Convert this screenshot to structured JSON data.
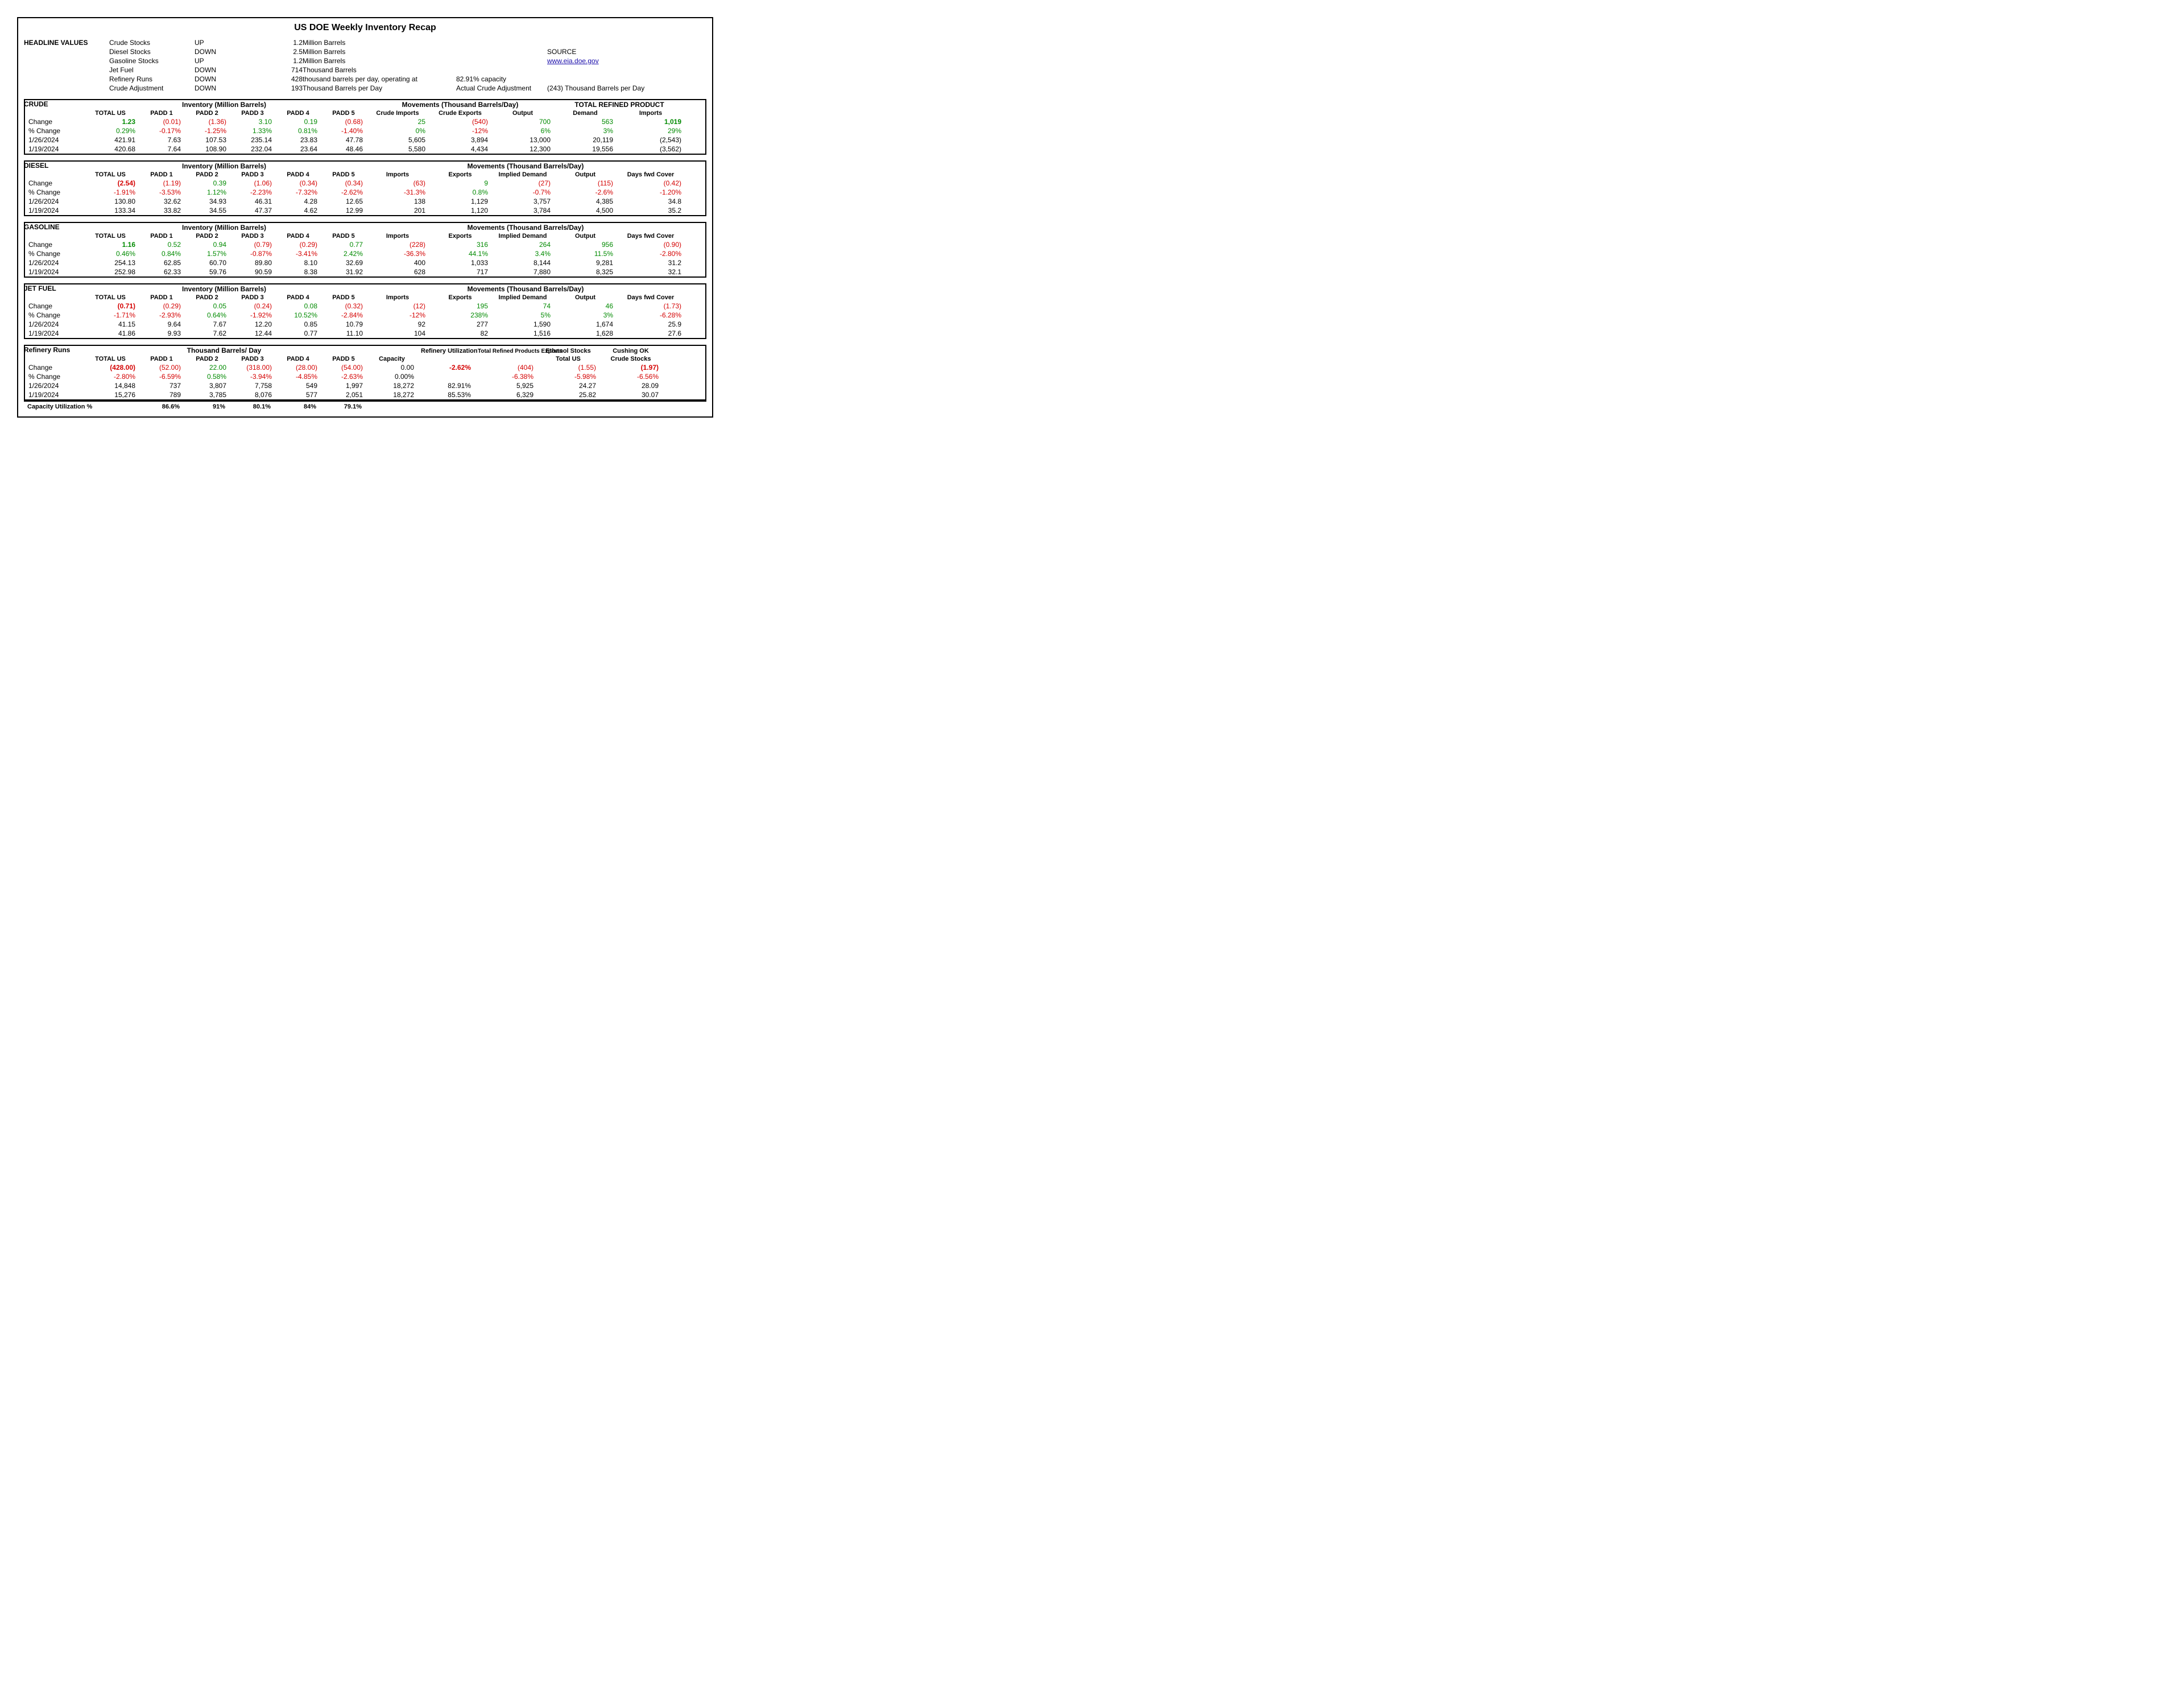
{
  "title": "US DOE Weekly Inventory Recap",
  "headlineLabel": "HEADLINE VALUES",
  "dates": {
    "cur": "1/26/2024",
    "prev": "1/19/2024"
  },
  "rowLabels": {
    "change": "Change",
    "pct": "% Change"
  },
  "headline": [
    {
      "name": "Crude Stocks",
      "dir": "UP",
      "val": "1.2",
      "unit": "Million Barrels"
    },
    {
      "name": "Diesel Stocks",
      "dir": "DOWN",
      "val": "2.5",
      "unit": "Million Barrels"
    },
    {
      "name": "Gasoline Stocks",
      "dir": "UP",
      "val": "1.2",
      "unit": "Million Barrels"
    },
    {
      "name": "Jet Fuel",
      "dir": "DOWN",
      "val": "714",
      "unit": "Thousand Barrels"
    },
    {
      "name": "Refinery Runs",
      "dir": "DOWN",
      "val": "428",
      "unit": "thousand barrels per day, operating at"
    },
    {
      "name": "Crude Adjustment",
      "dir": "DOWN",
      "val": "193",
      "unit": "Thousand Barrels per Day"
    }
  ],
  "refCapacity": "82.91% capacity",
  "sourceLabel": "SOURCE",
  "sourceLink": "www.eia.doe.gov",
  "actualAdjLbl": "Actual Crude Adjustment",
  "actualAdjVal": "(243)",
  "actualAdjUnit": "Thousand Barrels per Day",
  "invHdr": "Inventory (Million Barrels)",
  "movHdr": "Movements (Thousand Barrels/Day)",
  "paddHdrs": [
    "TOTAL US",
    "PADD 1",
    "PADD 2",
    "PADD 3",
    "PADD 4",
    "PADD 5"
  ],
  "crude": {
    "name": "CRUDE",
    "movCols": [
      "Crude Imports",
      "Crude Exports",
      "Output"
    ],
    "refHdr": "TOTAL REFINED PRODUCT",
    "refCols": [
      "Demand",
      "Imports"
    ],
    "change": [
      {
        "v": "1.23",
        "c": "pos",
        "b": 1
      },
      {
        "v": "(0.01)",
        "c": "neg"
      },
      {
        "v": "(1.36)",
        "c": "neg"
      },
      {
        "v": "3.10",
        "c": "pos"
      },
      {
        "v": "0.19",
        "c": "pos"
      },
      {
        "v": "(0.68)",
        "c": "neg"
      },
      {
        "v": "25",
        "c": "pos"
      },
      {
        "v": "(540)",
        "c": "neg"
      },
      {
        "v": "700",
        "c": "pos"
      },
      {
        "v": "563",
        "c": "pos"
      },
      {
        "v": "1,019",
        "c": "pos",
        "b": 1
      }
    ],
    "pct": [
      {
        "v": "0.29%",
        "c": "pos"
      },
      {
        "v": "-0.17%",
        "c": "neg"
      },
      {
        "v": "-1.25%",
        "c": "neg"
      },
      {
        "v": "1.33%",
        "c": "pos"
      },
      {
        "v": "0.81%",
        "c": "pos"
      },
      {
        "v": "-1.40%",
        "c": "neg"
      },
      {
        "v": "0%",
        "c": "pos"
      },
      {
        "v": "-12%",
        "c": "neg"
      },
      {
        "v": "6%",
        "c": "pos"
      },
      {
        "v": "3%",
        "c": "pos"
      },
      {
        "v": "29%",
        "c": "pos"
      }
    ],
    "cur": [
      "421.91",
      "7.63",
      "107.53",
      "235.14",
      "23.83",
      "47.78",
      "5,605",
      "3,894",
      "13,000",
      "20,119",
      "(2,543)"
    ],
    "prev": [
      "420.68",
      "7.64",
      "108.90",
      "232.04",
      "23.64",
      "48.46",
      "5,580",
      "4,434",
      "12,300",
      "19,556",
      "(3,562)"
    ]
  },
  "diesel": {
    "name": "DIESEL",
    "movCols": [
      "Imports",
      "Exports",
      "Implied Demand",
      "Output",
      "Days fwd Cover"
    ],
    "change": [
      {
        "v": "(2.54)",
        "c": "neg",
        "b": 1
      },
      {
        "v": "(1.19)",
        "c": "neg"
      },
      {
        "v": "0.39",
        "c": "pos"
      },
      {
        "v": "(1.06)",
        "c": "neg"
      },
      {
        "v": "(0.34)",
        "c": "neg"
      },
      {
        "v": "(0.34)",
        "c": "neg"
      },
      {
        "v": "(63)",
        "c": "neg"
      },
      {
        "v": "9",
        "c": "pos"
      },
      {
        "v": "(27)",
        "c": "neg"
      },
      {
        "v": "(115)",
        "c": "neg"
      },
      {
        "v": "(0.42)",
        "c": "neg"
      }
    ],
    "pct": [
      {
        "v": "-1.91%",
        "c": "neg"
      },
      {
        "v": "-3.53%",
        "c": "neg"
      },
      {
        "v": "1.12%",
        "c": "pos"
      },
      {
        "v": "-2.23%",
        "c": "neg"
      },
      {
        "v": "-7.32%",
        "c": "neg"
      },
      {
        "v": "-2.62%",
        "c": "neg"
      },
      {
        "v": "-31.3%",
        "c": "neg"
      },
      {
        "v": "0.8%",
        "c": "pos"
      },
      {
        "v": "-0.7%",
        "c": "neg"
      },
      {
        "v": "-2.6%",
        "c": "neg"
      },
      {
        "v": "-1.20%",
        "c": "neg"
      }
    ],
    "cur": [
      "130.80",
      "32.62",
      "34.93",
      "46.31",
      "4.28",
      "12.65",
      "138",
      "1,129",
      "3,757",
      "4,385",
      "34.8"
    ],
    "prev": [
      "133.34",
      "33.82",
      "34.55",
      "47.37",
      "4.62",
      "12.99",
      "201",
      "1,120",
      "3,784",
      "4,500",
      "35.2"
    ]
  },
  "gasoline": {
    "name": "GASOLINE",
    "movCols": [
      "Imports",
      "Exports",
      "Implied Demand",
      "Output",
      "Days fwd Cover"
    ],
    "change": [
      {
        "v": "1.16",
        "c": "pos",
        "b": 1
      },
      {
        "v": "0.52",
        "c": "pos"
      },
      {
        "v": "0.94",
        "c": "pos"
      },
      {
        "v": "(0.79)",
        "c": "neg"
      },
      {
        "v": "(0.29)",
        "c": "neg"
      },
      {
        "v": "0.77",
        "c": "pos"
      },
      {
        "v": "(228)",
        "c": "neg"
      },
      {
        "v": "316",
        "c": "pos"
      },
      {
        "v": "264",
        "c": "pos"
      },
      {
        "v": "956",
        "c": "pos"
      },
      {
        "v": "(0.90)",
        "c": "neg"
      }
    ],
    "pct": [
      {
        "v": "0.46%",
        "c": "pos"
      },
      {
        "v": "0.84%",
        "c": "pos"
      },
      {
        "v": "1.57%",
        "c": "pos"
      },
      {
        "v": "-0.87%",
        "c": "neg"
      },
      {
        "v": "-3.41%",
        "c": "neg"
      },
      {
        "v": "2.42%",
        "c": "pos"
      },
      {
        "v": "-36.3%",
        "c": "neg"
      },
      {
        "v": "44.1%",
        "c": "pos"
      },
      {
        "v": "3.4%",
        "c": "pos"
      },
      {
        "v": "11.5%",
        "c": "pos"
      },
      {
        "v": "-2.80%",
        "c": "neg"
      }
    ],
    "cur": [
      "254.13",
      "62.85",
      "60.70",
      "89.80",
      "8.10",
      "32.69",
      "400",
      "1,033",
      "8,144",
      "9,281",
      "31.2"
    ],
    "prev": [
      "252.98",
      "62.33",
      "59.76",
      "90.59",
      "8.38",
      "31.92",
      "628",
      "717",
      "7,880",
      "8,325",
      "32.1"
    ]
  },
  "jet": {
    "name": "JET FUEL",
    "movCols": [
      "Imports",
      "Exports",
      "Implied Demand",
      "Output",
      "Days fwd Cover"
    ],
    "change": [
      {
        "v": "(0.71)",
        "c": "neg",
        "b": 1
      },
      {
        "v": "(0.29)",
        "c": "neg"
      },
      {
        "v": "0.05",
        "c": "pos"
      },
      {
        "v": "(0.24)",
        "c": "neg"
      },
      {
        "v": "0.08",
        "c": "pos"
      },
      {
        "v": "(0.32)",
        "c": "neg"
      },
      {
        "v": "(12)",
        "c": "neg"
      },
      {
        "v": "195",
        "c": "pos"
      },
      {
        "v": "74",
        "c": "pos"
      },
      {
        "v": "46",
        "c": "pos"
      },
      {
        "v": "(1.73)",
        "c": "neg"
      }
    ],
    "pct": [
      {
        "v": "-1.71%",
        "c": "neg"
      },
      {
        "v": "-2.93%",
        "c": "neg"
      },
      {
        "v": "0.64%",
        "c": "pos"
      },
      {
        "v": "-1.92%",
        "c": "neg"
      },
      {
        "v": "10.52%",
        "c": "pos"
      },
      {
        "v": "-2.84%",
        "c": "neg"
      },
      {
        "v": "-12%",
        "c": "neg"
      },
      {
        "v": "238%",
        "c": "pos"
      },
      {
        "v": "5%",
        "c": "pos"
      },
      {
        "v": "3%",
        "c": "pos"
      },
      {
        "v": "-6.28%",
        "c": "neg"
      }
    ],
    "cur": [
      "41.15",
      "9.64",
      "7.67",
      "12.20",
      "0.85",
      "10.79",
      "92",
      "277",
      "1,590",
      "1,674",
      "25.9"
    ],
    "prev": [
      "41.86",
      "9.93",
      "7.62",
      "12.44",
      "0.77",
      "11.10",
      "104",
      "82",
      "1,516",
      "1,628",
      "27.6"
    ]
  },
  "refinery": {
    "name": "Refinery Runs",
    "barHdr": "Thousand Barrels/ Day",
    "extraHdrs": {
      "refUtil": "Refinery Utilization",
      "totRef": "Total Refined Products Exports",
      "eth": "Ethanol Stocks",
      "ethSub": "Total US",
      "cush": "Cushing OK",
      "cushSub": "Crude Stocks",
      "cap": "Capacity"
    },
    "change": [
      {
        "v": "(428.00)",
        "c": "neg",
        "b": 1
      },
      {
        "v": "(52.00)",
        "c": "neg"
      },
      {
        "v": "22.00",
        "c": "pos"
      },
      {
        "v": "(318.00)",
        "c": "neg"
      },
      {
        "v": "(28.00)",
        "c": "neg"
      },
      {
        "v": "(54.00)",
        "c": "neg"
      },
      {
        "v": "0.00"
      },
      {
        "v": "-2.62%",
        "c": "neg",
        "b": 1
      },
      {
        "v": "(404)",
        "c": "neg"
      },
      {
        "v": "(1.55)",
        "c": "neg"
      },
      {
        "v": "(1.97)",
        "c": "neg",
        "b": 1
      }
    ],
    "pct": [
      {
        "v": "-2.80%",
        "c": "neg"
      },
      {
        "v": "-6.59%",
        "c": "neg"
      },
      {
        "v": "0.58%",
        "c": "pos"
      },
      {
        "v": "-3.94%",
        "c": "neg"
      },
      {
        "v": "-4.85%",
        "c": "neg"
      },
      {
        "v": "-2.63%",
        "c": "neg"
      },
      {
        "v": "0.00%"
      },
      {
        "v": ""
      },
      {
        "v": "-6.38%",
        "c": "neg"
      },
      {
        "v": "-5.98%",
        "c": "neg"
      },
      {
        "v": "-6.56%",
        "c": "neg"
      }
    ],
    "cur": [
      "14,848",
      "737",
      "3,807",
      "7,758",
      "549",
      "1,997",
      "18,272",
      "82.91%",
      "5,925",
      "24.27",
      "28.09"
    ],
    "prev": [
      "15,276",
      "789",
      "3,785",
      "8,076",
      "577",
      "2,051",
      "18,272",
      "85.53%",
      "6,329",
      "25.82",
      "30.07"
    ]
  },
  "capUtil": {
    "label": "Capacity Utilization %",
    "vals": [
      "86.6%",
      "91%",
      "80.1%",
      "84%",
      "79.1%"
    ]
  }
}
